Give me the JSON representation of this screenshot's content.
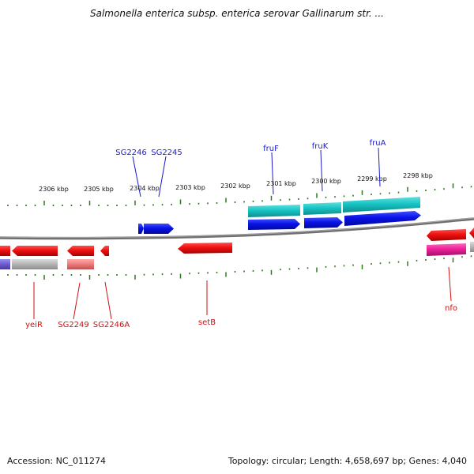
{
  "title": "Salmonella enterica subsp. enterica serovar Gallinarum str. ...",
  "footer": {
    "accession": "Accession: NC_011274",
    "summary": "Topology: circular; Length: 4,658,697 bp; Genes: 4,040"
  },
  "ticks_top": [
    "2306 kbp",
    "2305 kbp",
    "2304 kbp",
    "2303 kbp",
    "2302 kbp",
    "2301 kbp",
    "2300 kbp",
    "2299 kbp",
    "2298 kbp"
  ],
  "labels_top": [
    "SG2246",
    "SG2245",
    "fruF",
    "fruK",
    "fruA"
  ],
  "labels_bottom": [
    "yeiR",
    "SG2249",
    "SG2246A",
    "setB",
    "nfo"
  ],
  "colors": {
    "tick_green": "#2a7a1a",
    "backbone": "#777777",
    "forward_blue": "#0a12e6",
    "forward_cyan": "#18c4c4",
    "reverse_red": "#ee1111",
    "reverse_pink": "#ee2299",
    "pseudo_gray": "#b8b8b8",
    "pseudo_salmon": "#f08080",
    "edge_purple": "#7060d0",
    "label_blue": "#1a1acc",
    "label_red": "#cc1111"
  }
}
